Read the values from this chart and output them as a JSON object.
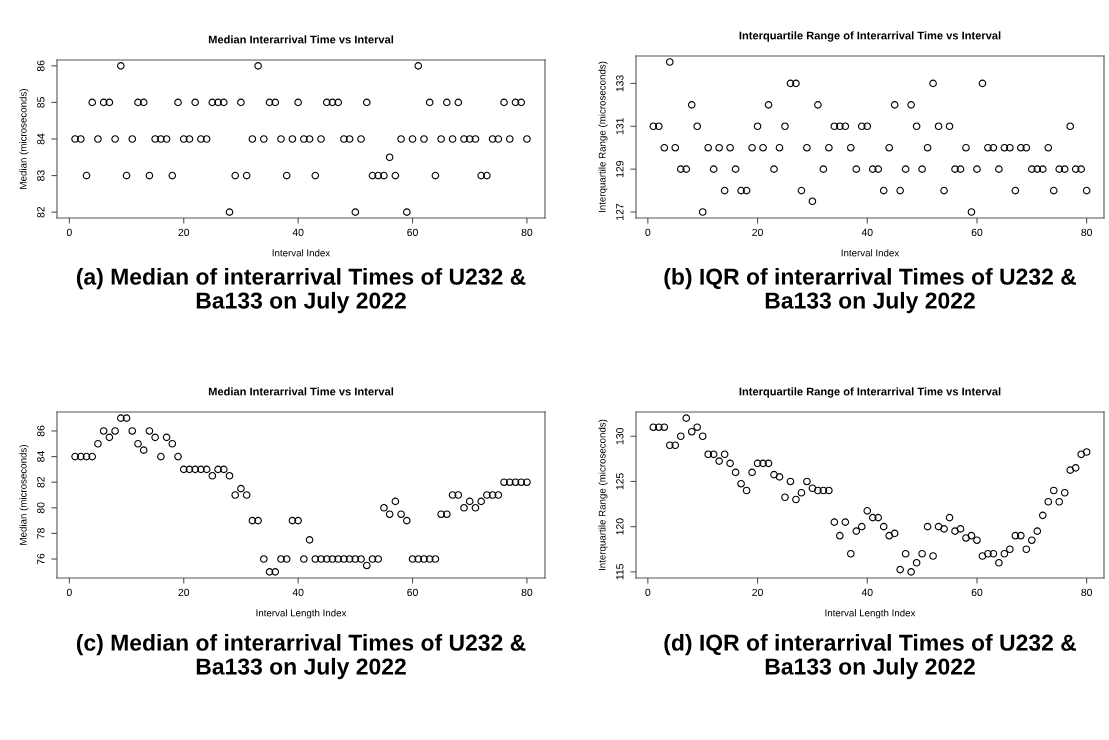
{
  "chart_data": [
    {
      "type": "scatter",
      "title": "Median Interarrival Time vs Interval",
      "xlabel": "Interval Index",
      "ylabel": "Median (microseconds)",
      "marker": "circle",
      "x": [
        1,
        2,
        3,
        4,
        5,
        6,
        7,
        8,
        9,
        10,
        11,
        12,
        13,
        14,
        15,
        16,
        17,
        18,
        19,
        20,
        21,
        22,
        23,
        24,
        25,
        26,
        27,
        28,
        29,
        30,
        31,
        32,
        33,
        34,
        35,
        36,
        37,
        38,
        39,
        40,
        41,
        42,
        43,
        44,
        45,
        46,
        47,
        48,
        49,
        50,
        51,
        52,
        53,
        54,
        55,
        56,
        57,
        58,
        59,
        60,
        61,
        62,
        63,
        64,
        65,
        66,
        67,
        68,
        69,
        70,
        71,
        72,
        73,
        74,
        75,
        76,
        77,
        78,
        79,
        80
      ],
      "series": [
        {
          "color": "#000000",
          "values": [
            84,
            84,
            83,
            85,
            84,
            85,
            85,
            84,
            86,
            83,
            84,
            85,
            85,
            83,
            84,
            84,
            84,
            83,
            85,
            84,
            84,
            85,
            84,
            84,
            85,
            85,
            85,
            82,
            83,
            85,
            83,
            84,
            86,
            84,
            85,
            85,
            84,
            83,
            84,
            85,
            84,
            84,
            83,
            84,
            85,
            85,
            85,
            84,
            84,
            82,
            84,
            85,
            83,
            83,
            83,
            83.5,
            83,
            84,
            82,
            84,
            86,
            84,
            85,
            83,
            84,
            85,
            84,
            85,
            84,
            84,
            84,
            83,
            83,
            84,
            84,
            85,
            84,
            85,
            85,
            84
          ]
        }
      ],
      "xlim": [
        -2.16,
        83.16
      ],
      "ylim": [
        81.84,
        86.16
      ],
      "xticks": [
        0,
        20,
        40,
        60,
        80
      ],
      "yticks": [
        82,
        83,
        84,
        85,
        86
      ],
      "annotations": [
        "(a) Median of interarrival Times of U232 & Ba133 on July 2022"
      ]
    },
    {
      "type": "scatter",
      "title": "Interquartile Range of Interarrival Time vs Interval",
      "xlabel": "Interval Index",
      "ylabel": "Interquartile Range (microseconds)",
      "marker": "circle",
      "x": [
        1,
        2,
        3,
        4,
        5,
        6,
        7,
        8,
        9,
        10,
        11,
        12,
        13,
        14,
        15,
        16,
        17,
        18,
        19,
        20,
        21,
        22,
        23,
        24,
        25,
        26,
        27,
        28,
        29,
        30,
        31,
        32,
        33,
        34,
        35,
        36,
        37,
        38,
        39,
        40,
        41,
        42,
        43,
        44,
        45,
        46,
        47,
        48,
        49,
        50,
        51,
        52,
        53,
        54,
        55,
        56,
        57,
        58,
        59,
        60,
        61,
        62,
        63,
        64,
        65,
        66,
        67,
        68,
        69,
        70,
        71,
        72,
        73,
        74,
        75,
        76,
        77,
        78,
        79,
        80
      ],
      "series": [
        {
          "color": "#000000",
          "values": [
            131,
            131,
            130,
            134,
            130,
            129,
            129,
            132,
            131,
            127,
            130,
            129,
            130,
            128,
            130,
            129,
            128,
            128,
            130,
            131,
            130,
            132,
            129,
            130,
            131,
            133,
            133,
            128,
            130,
            127.5,
            132,
            129,
            130,
            131,
            131,
            131,
            130,
            129,
            131,
            131,
            129,
            129,
            128,
            130,
            132,
            128,
            129,
            132,
            131,
            129,
            130,
            133,
            131,
            128,
            131,
            129,
            129,
            130,
            127,
            129,
            133,
            130,
            130,
            129,
            130,
            130,
            128,
            130,
            130,
            129,
            129,
            129,
            130,
            128,
            129,
            129,
            131,
            129,
            129,
            128
          ]
        }
      ],
      "xlim": [
        -2.16,
        83.16
      ],
      "ylim": [
        126.72,
        134.28
      ],
      "xticks": [
        0,
        20,
        40,
        60,
        80
      ],
      "yticks": [
        127,
        129,
        131,
        133
      ],
      "annotations": [
        "(b) IQR of interarrival Times of U232 & Ba133 on July 2022"
      ]
    },
    {
      "type": "scatter",
      "title": "Median Interarrival Time vs Interval",
      "xlabel": "Interval Length Index",
      "ylabel": "Median (microseconds)",
      "marker": "circle",
      "x": [
        1,
        2,
        3,
        4,
        5,
        6,
        7,
        8,
        9,
        10,
        11,
        12,
        13,
        14,
        15,
        16,
        17,
        18,
        19,
        20,
        21,
        22,
        23,
        24,
        25,
        26,
        27,
        28,
        29,
        30,
        31,
        32,
        33,
        34,
        35,
        36,
        37,
        38,
        39,
        40,
        41,
        42,
        43,
        44,
        45,
        46,
        47,
        48,
        49,
        50,
        51,
        52,
        53,
        54,
        55,
        56,
        57,
        58,
        59,
        60,
        61,
        62,
        63,
        64,
        65,
        66,
        67,
        68,
        69,
        70,
        71,
        72,
        73,
        74,
        75,
        76,
        77,
        78,
        79,
        80
      ],
      "series": [
        {
          "color": "#000000",
          "values": [
            84,
            84,
            84,
            84,
            85,
            86,
            85.5,
            86,
            87,
            87,
            86,
            85,
            84.5,
            86,
            85.5,
            84,
            85.5,
            85,
            84,
            83,
            83,
            83,
            83,
            83,
            82.5,
            83,
            83,
            82.5,
            81,
            81.5,
            81,
            79,
            79,
            76,
            75,
            75,
            76,
            76,
            79,
            79,
            76,
            77.5,
            76,
            76,
            76,
            76,
            76,
            76,
            76,
            76,
            76,
            75.5,
            76,
            76,
            80,
            79.5,
            80.5,
            79.5,
            79,
            76,
            76,
            76,
            76,
            76,
            79.5,
            79.5,
            81,
            81,
            80,
            80.5,
            80,
            80.5,
            81,
            81,
            81,
            82,
            82,
            82,
            82,
            82
          ]
        }
      ],
      "xlim": [
        -2.16,
        83.16
      ],
      "ylim": [
        74.52,
        87.48
      ],
      "xticks": [
        0,
        20,
        40,
        60,
        80
      ],
      "yticks": [
        76,
        78,
        80,
        82,
        84,
        86
      ],
      "annotations": [
        "(c) Median of interarrival Times of U232 & Ba133 on July 2022"
      ]
    },
    {
      "type": "scatter",
      "title": "Interquartile Range of Interarrival Time vs Interval",
      "xlabel": "Interval Length Index",
      "ylabel": "Interquartile Range (microseconds)",
      "marker": "circle",
      "x": [
        1,
        2,
        3,
        4,
        5,
        6,
        7,
        8,
        9,
        10,
        11,
        12,
        13,
        14,
        15,
        16,
        17,
        18,
        19,
        20,
        21,
        22,
        23,
        24,
        25,
        26,
        27,
        28,
        29,
        30,
        31,
        32,
        33,
        34,
        35,
        36,
        37,
        38,
        39,
        40,
        41,
        42,
        43,
        44,
        45,
        46,
        47,
        48,
        49,
        50,
        51,
        52,
        53,
        54,
        55,
        56,
        57,
        58,
        59,
        60,
        61,
        62,
        63,
        64,
        65,
        66,
        67,
        68,
        69,
        70,
        71,
        72,
        73,
        74,
        75,
        76,
        77,
        78,
        79,
        80
      ],
      "series": [
        {
          "color": "#000000",
          "values": [
            131,
            131,
            131,
            129,
            129,
            130,
            132,
            130.5,
            131,
            130,
            128,
            128,
            127.25,
            128,
            127,
            126,
            124.75,
            124,
            126,
            127,
            127,
            127,
            125.75,
            125.5,
            123.25,
            125,
            123,
            123.75,
            125,
            124.25,
            124,
            124,
            124,
            120.5,
            119,
            120.5,
            117,
            119.5,
            120,
            121.75,
            121,
            121,
            120,
            119,
            119.25,
            115.25,
            117,
            115,
            116,
            117,
            120,
            116.75,
            120,
            119.75,
            121,
            119.5,
            119.75,
            118.75,
            119,
            118.5,
            116.75,
            117,
            117,
            116,
            117,
            117.5,
            119,
            119,
            117.5,
            118.5,
            119.5,
            121.25,
            122.75,
            124,
            122.75,
            123.75,
            126.25,
            126.5,
            128,
            128.25
          ]
        }
      ],
      "xlim": [
        -2.16,
        83.16
      ],
      "ylim": [
        114.32,
        132.68
      ],
      "xticks": [
        0,
        20,
        40,
        60,
        80
      ],
      "yticks": [
        115,
        120,
        125,
        130
      ],
      "annotations": [
        "(d) IQR of interarrival Times of U232 & Ba133 on July 2022"
      ]
    }
  ]
}
